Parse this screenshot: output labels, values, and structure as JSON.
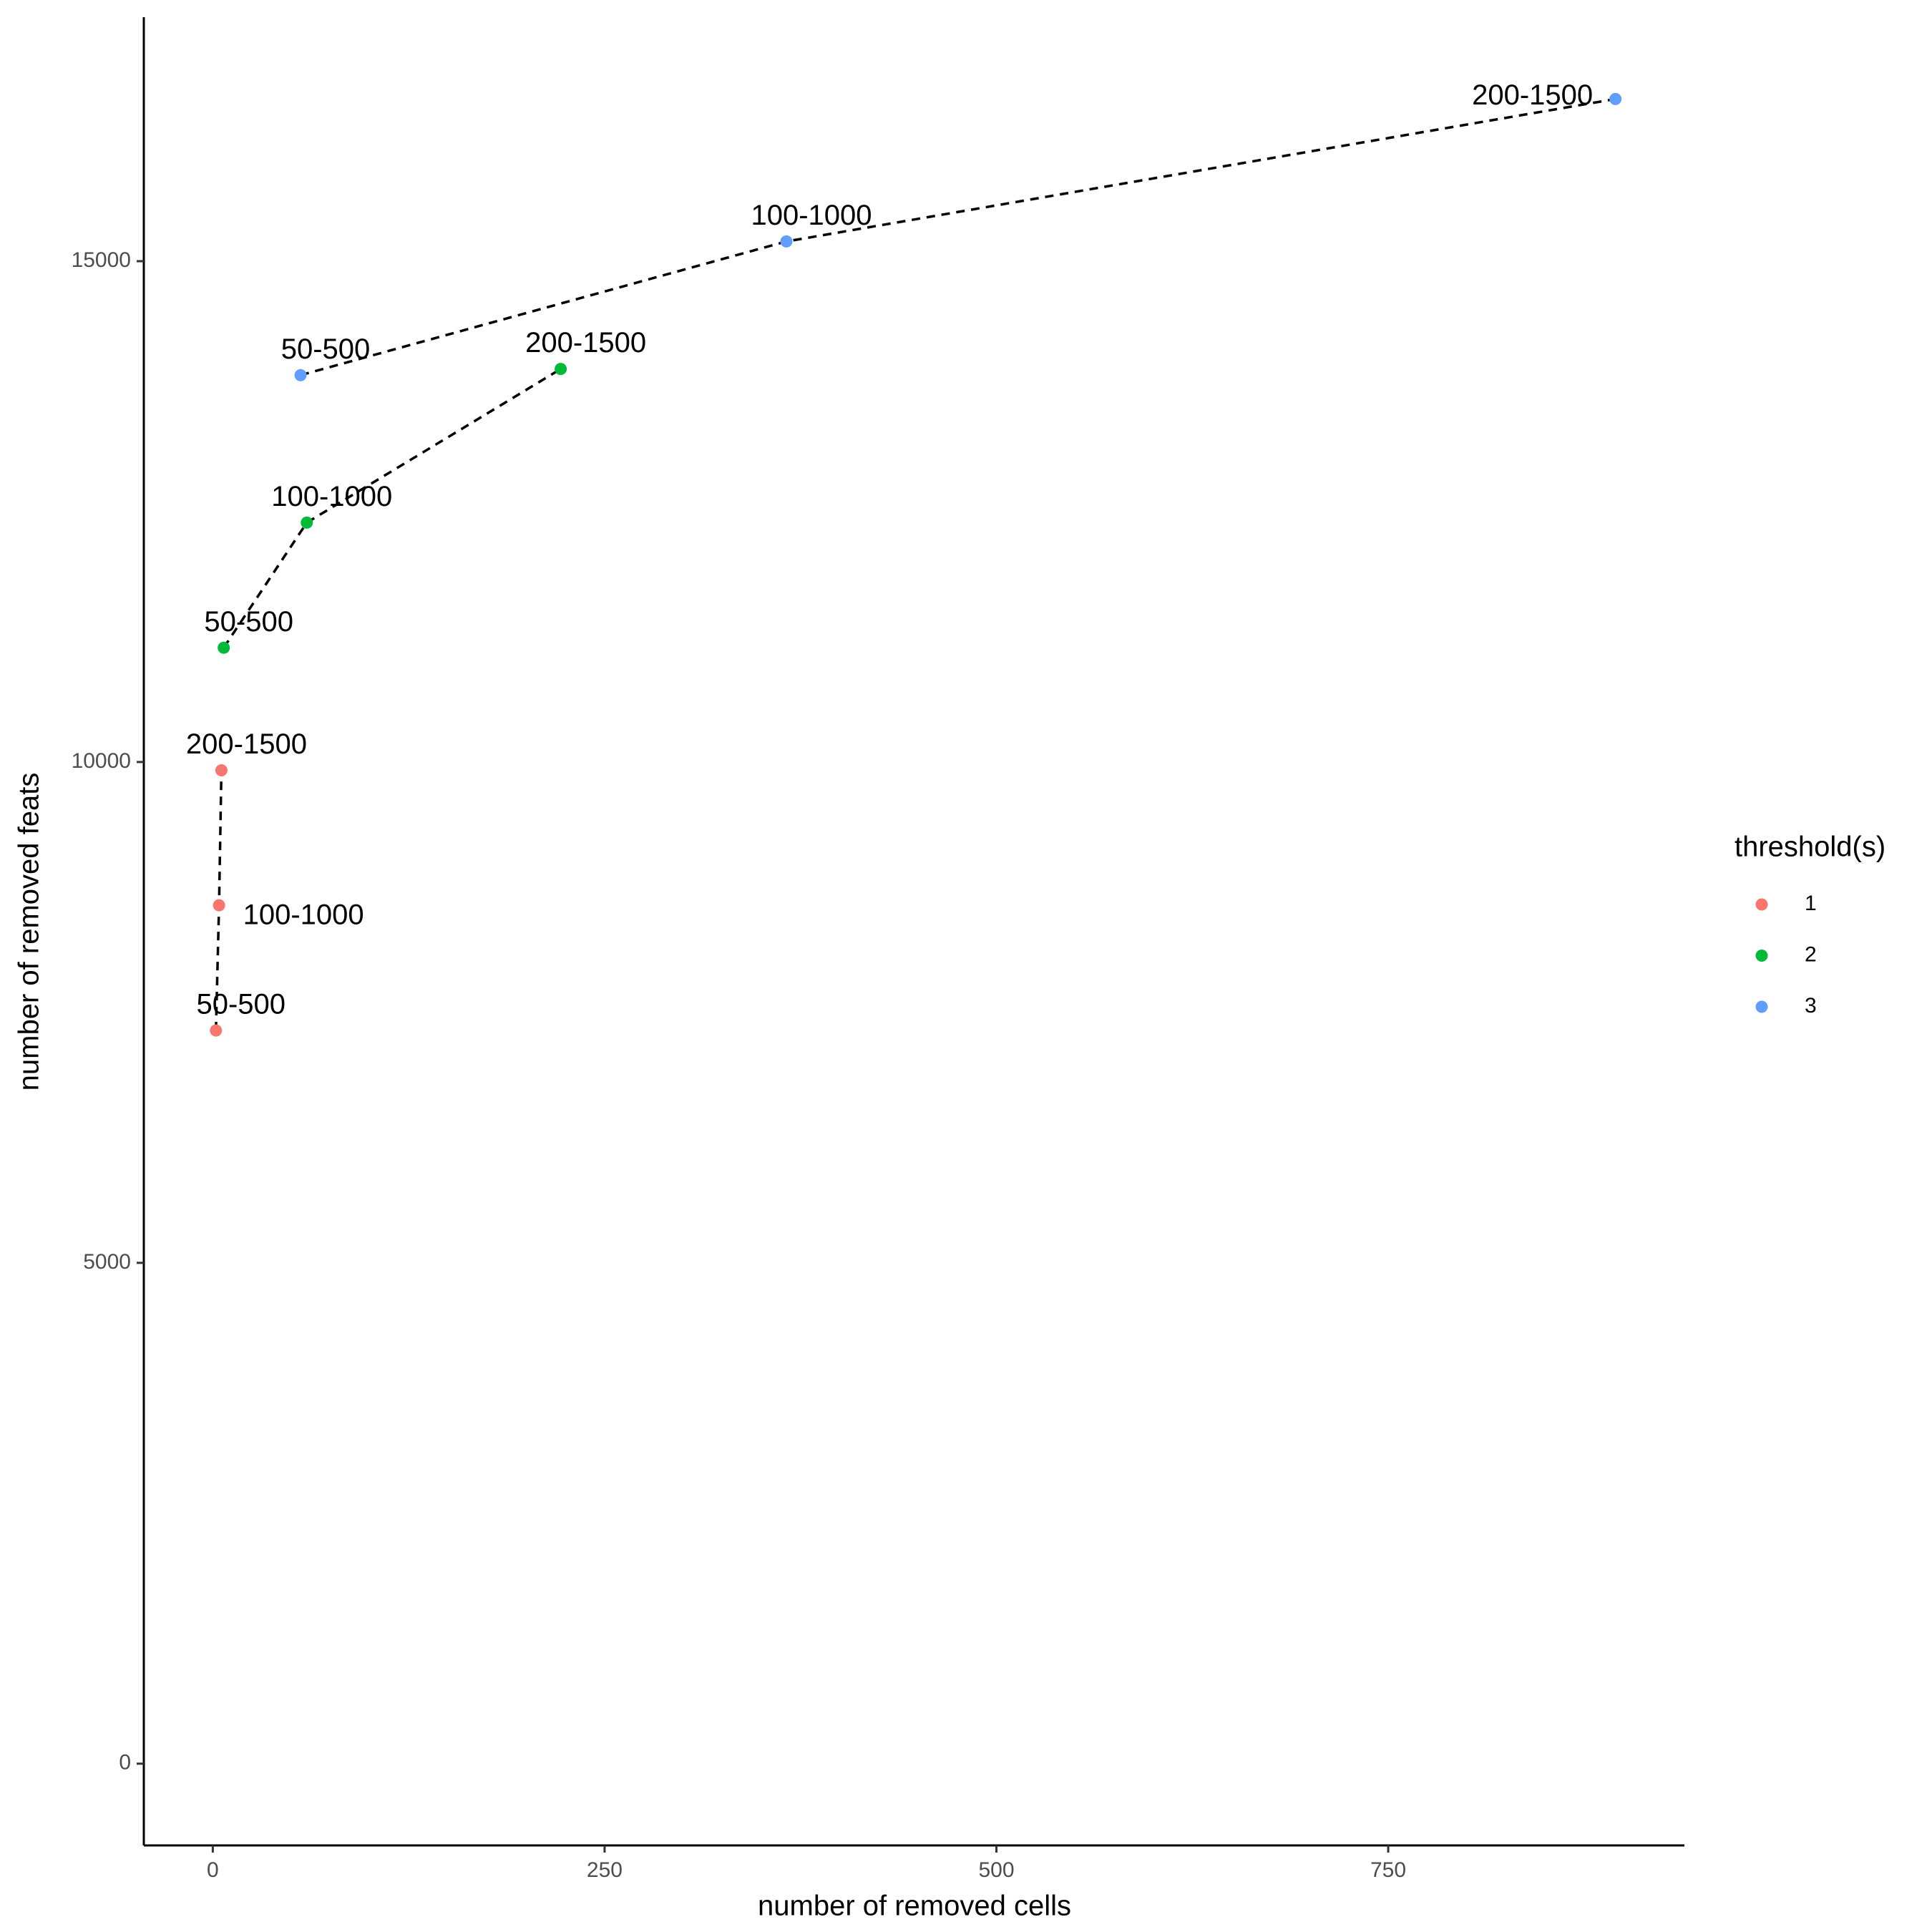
{
  "chart_data": {
    "type": "scatter",
    "x_label": "number of removed cells",
    "y_label": "number of removed feats",
    "legend_title": "threshold(s)",
    "legend_position": "right",
    "grid": false,
    "line_style": "dashed",
    "xlim": [
      -44,
      939
    ],
    "ylim": [
      -816,
      17436
    ],
    "xticks": [
      0,
      250,
      500,
      750
    ],
    "yticks": [
      0,
      5000,
      10000,
      15000
    ],
    "series": [
      {
        "name": "1",
        "color": "#f8766d",
        "x": [
          2,
          4,
          5.5
        ],
        "values": [
          7320,
          8570,
          9917
        ],
        "labels": [
          "50-500",
          "100-1000",
          "200-1500"
        ]
      },
      {
        "name": "2",
        "color": "#00ba38",
        "x": [
          7,
          60,
          222
        ],
        "values": [
          11141,
          12390,
          13924
        ],
        "labels": [
          "50-500",
          "100-1000",
          "200-1500"
        ]
      },
      {
        "name": "3",
        "color": "#619cff",
        "x": [
          56,
          366,
          895
        ],
        "values": [
          13862,
          15197,
          16619
        ],
        "labels": [
          "50-500",
          "100-1000",
          "200-1500"
        ]
      }
    ]
  }
}
